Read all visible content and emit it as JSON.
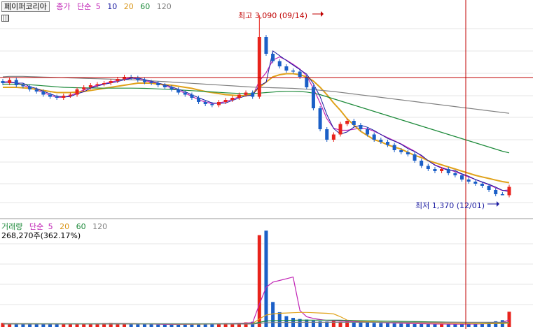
{
  "price_header": {
    "stock_name": "페이퍼코리아",
    "price_label": "종가",
    "ma_label": "단순",
    "ma_periods": [
      "5",
      "10",
      "20",
      "60",
      "120"
    ]
  },
  "volume_header": {
    "volume_label": "거래량",
    "ma_label": "단순",
    "ma_periods": [
      "5",
      "20",
      "60",
      "120"
    ],
    "last_volume": "268,270주(362.17%)"
  },
  "annotations": {
    "high": "최고 3,090 (09/14)",
    "low": "최저 1,370 (12/01)"
  },
  "colors": {
    "up": "#e8231c",
    "down": "#1b5fc7",
    "ma5": "#c022b5",
    "ma10": "#1a1aa0",
    "ma20": "#e0a21a",
    "ma60": "#1d8a3a",
    "ma120": "#808080",
    "crosshair": "#c00000"
  },
  "chart_data": [
    {
      "type": "candlestick",
      "title": "페이퍼코리아",
      "series": [
        {
          "name": "종가",
          "values": [
            2440,
            2470,
            2420,
            2410,
            2380,
            2360,
            2330,
            2310,
            2300,
            2320,
            2330,
            2380,
            2400,
            2420,
            2430,
            2440,
            2460,
            2480,
            2500,
            2490,
            2470,
            2450,
            2440,
            2420,
            2400,
            2380,
            2350,
            2330,
            2300,
            2260,
            2240,
            2230,
            2260,
            2280,
            2300,
            2330,
            2350,
            2310,
            2880,
            2720,
            2650,
            2600,
            2560,
            2550,
            2500,
            2400,
            2200,
            2000,
            1900,
            1950,
            2050,
            2080,
            2040,
            2000,
            1950,
            1900,
            1880,
            1850,
            1800,
            1780,
            1760,
            1700,
            1650,
            1620,
            1600,
            1620,
            1580,
            1560,
            1520,
            1500,
            1480,
            1460,
            1420,
            1380,
            1370,
            1450
          ]
        },
        {
          "name": "5",
          "values": [
            2450,
            2455,
            2440,
            2420,
            2395,
            2375,
            2350,
            2325,
            2305,
            2305,
            2320,
            2350,
            2375,
            2400,
            2420,
            2435,
            2450,
            2465,
            2480,
            2490,
            2480,
            2465,
            2450,
            2435,
            2415,
            2395,
            2370,
            2345,
            2315,
            2280,
            2260,
            2245,
            2250,
            2265,
            2285,
            2310,
            2330,
            2320,
            2460,
            2540,
            2660,
            2690,
            2660,
            2620,
            2575,
            2510,
            2390,
            2250,
            2100,
            2010,
            1990,
            1990,
            2000,
            2010,
            2005,
            1980,
            1950,
            1920,
            1890,
            1860,
            1825,
            1790,
            1745,
            1700,
            1660,
            1635,
            1615,
            1595,
            1570,
            1545,
            1520,
            1495,
            1470,
            1440,
            1415,
            1420
          ]
        },
        {
          "name": "20",
          "values": [
            2400,
            2400,
            2400,
            2395,
            2390,
            2380,
            2370,
            2360,
            2350,
            2350,
            2350,
            2355,
            2360,
            2370,
            2380,
            2390,
            2400,
            2410,
            2420,
            2430,
            2440,
            2440,
            2440,
            2430,
            2425,
            2420,
            2410,
            2400,
            2390,
            2375,
            2360,
            2350,
            2340,
            2330,
            2325,
            2320,
            2320,
            2340,
            2400,
            2450,
            2500,
            2520,
            2530,
            2530,
            2520,
            2500,
            2460,
            2400,
            2330,
            2250,
            2180,
            2100,
            2040,
            1980,
            1940,
            1900,
            1880,
            1850,
            1830,
            1810,
            1780,
            1750,
            1730,
            1700,
            1680,
            1660,
            1640,
            1620,
            1600,
            1580,
            1560,
            1545,
            1530,
            1515,
            1500,
            1490
          ]
        },
        {
          "name": "60",
          "values": [
            2430,
            2430,
            2430,
            2428,
            2425,
            2420,
            2415,
            2410,
            2405,
            2400,
            2398,
            2396,
            2395,
            2394,
            2393,
            2392,
            2392,
            2392,
            2392,
            2392,
            2391,
            2390,
            2388,
            2385,
            2382,
            2380,
            2376,
            2372,
            2368,
            2364,
            2360,
            2356,
            2352,
            2348,
            2345,
            2342,
            2340,
            2340,
            2345,
            2350,
            2355,
            2360,
            2362,
            2362,
            2360,
            2355,
            2345,
            2330,
            2310,
            2290,
            2270,
            2250,
            2230,
            2210,
            2190,
            2170,
            2150,
            2130,
            2110,
            2090,
            2070,
            2050,
            2030,
            2010,
            1990,
            1970,
            1950,
            1930,
            1910,
            1890,
            1870,
            1850,
            1830,
            1810,
            1790,
            1775
          ]
        },
        {
          "name": "120",
          "values": [
            2500,
            2505,
            2505,
            2505,
            2502,
            2500,
            2498,
            2496,
            2494,
            2492,
            2490,
            2488,
            2486,
            2484,
            2482,
            2480,
            2478,
            2476,
            2474,
            2472,
            2470,
            2466,
            2462,
            2458,
            2454,
            2450,
            2446,
            2442,
            2438,
            2434,
            2430,
            2426,
            2422,
            2418,
            2414,
            2410,
            2406,
            2402,
            2400,
            2398,
            2396,
            2394,
            2392,
            2390,
            2386,
            2382,
            2378,
            2372,
            2366,
            2360,
            2352,
            2344,
            2336,
            2328,
            2320,
            2312,
            2304,
            2296,
            2288,
            2280,
            2272,
            2264,
            2256,
            2248,
            2240,
            2232,
            2224,
            2216,
            2208,
            2200,
            2192,
            2184,
            2176,
            2168,
            2160,
            2152
          ]
        }
      ],
      "high": 3090,
      "low": 1370
    },
    {
      "type": "bar",
      "title": "거래량",
      "series": [
        {
          "name": "거래량",
          "values": [
            70,
            60,
            55,
            50,
            50,
            45,
            50,
            55,
            48,
            52,
            60,
            55,
            50,
            52,
            58,
            65,
            70,
            60,
            55,
            50,
            48,
            45,
            50,
            42,
            40,
            45,
            50,
            48,
            52,
            55,
            50,
            58,
            60,
            65,
            62,
            70,
            80,
            90,
            1620,
            1700,
            440,
            260,
            190,
            160,
            140,
            130,
            110,
            100,
            95,
            120,
            90,
            100,
            80,
            85,
            75,
            70,
            68,
            65,
            60,
            58,
            55,
            52,
            50,
            52,
            48,
            45,
            50,
            48,
            52,
            55,
            50,
            60,
            70,
            100,
            120,
            268
          ]
        },
        {
          "name": "5",
          "values": [
            60,
            58,
            57,
            56,
            55,
            52,
            50,
            51,
            50,
            50,
            53,
            54,
            53,
            53,
            55,
            57,
            59,
            60,
            60,
            58,
            55,
            52,
            50,
            48,
            45,
            44,
            45,
            46,
            47,
            50,
            52,
            53,
            55,
            58,
            60,
            63,
            68,
            75,
            400,
            700,
            790,
            820,
            850,
            880,
            290,
            180,
            150,
            130,
            115,
            110,
            105,
            100,
            95,
            92,
            88,
            84,
            78,
            73,
            69,
            65,
            61,
            58,
            55,
            53,
            51,
            50,
            49,
            49,
            49,
            50,
            51,
            53,
            57,
            65,
            80,
            125
          ]
        },
        {
          "name": "20",
          "values": [
            55,
            55,
            55,
            55,
            55,
            55,
            54,
            54,
            53,
            53,
            53,
            53,
            53,
            53,
            54,
            54,
            55,
            55,
            55,
            55,
            54,
            53,
            52,
            51,
            50,
            49,
            48,
            48,
            48,
            48,
            49,
            50,
            51,
            52,
            53,
            55,
            57,
            60,
            140,
            210,
            230,
            240,
            245,
            250,
            255,
            255,
            250,
            245,
            240,
            230,
            180,
            120,
            110,
            100,
            95,
            90,
            85,
            82,
            80,
            78,
            76,
            74,
            72,
            70,
            68,
            66,
            64,
            62,
            60,
            59,
            58,
            57,
            57,
            58,
            60,
            65
          ]
        },
        {
          "name": "60",
          "values": [
            55,
            55,
            55,
            55,
            55,
            55,
            55,
            55,
            55,
            55,
            55,
            55,
            55,
            55,
            55,
            55,
            55,
            55,
            55,
            55,
            55,
            55,
            55,
            55,
            55,
            55,
            55,
            55,
            55,
            55,
            55,
            55,
            55,
            55,
            55,
            55,
            55,
            56,
            80,
            105,
            110,
            113,
            115,
            117,
            118,
            119,
            120,
            120,
            120,
            120,
            118,
            115,
            112,
            110,
            108,
            106,
            104,
            102,
            100,
            98,
            96,
            94,
            92,
            90,
            88,
            86,
            84,
            82,
            80,
            78,
            77,
            76,
            75,
            75,
            75,
            76
          ]
        },
        {
          "name": "120",
          "values": [
            50,
            50,
            50,
            50,
            50,
            50,
            50,
            50,
            50,
            50,
            50,
            50,
            50,
            50,
            50,
            50,
            50,
            50,
            50,
            50,
            50,
            50,
            50,
            50,
            50,
            50,
            50,
            50,
            50,
            50,
            50,
            50,
            50,
            50,
            50,
            50,
            50,
            50,
            62,
            74,
            76,
            78,
            79,
            80,
            81,
            82,
            82,
            82,
            82,
            82,
            82,
            82,
            82,
            82,
            82,
            82,
            82,
            82,
            82,
            82,
            82,
            82,
            82,
            82,
            82,
            82,
            82,
            82,
            82,
            82,
            82,
            82,
            82,
            82,
            82,
            82
          ]
        }
      ]
    }
  ]
}
